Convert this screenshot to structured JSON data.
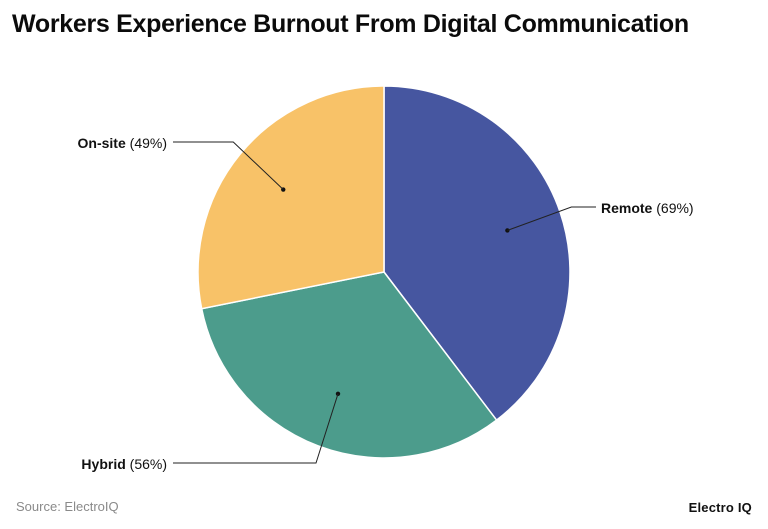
{
  "chart_data": {
    "type": "pie",
    "title": "Workers Experience Burnout From Digital Communication",
    "slices": [
      {
        "label": "Remote",
        "value_text": "(69%)",
        "value": 69,
        "color": "#4656a0"
      },
      {
        "label": "Hybrid",
        "value_text": "(56%)",
        "value": 56,
        "color": "#4c9c8c"
      },
      {
        "label": "On-site",
        "value_text": "(49%)",
        "value": 49,
        "color": "#f8c268"
      }
    ]
  },
  "footer": {
    "source": "Source: ElectroIQ",
    "brand": "Electro IQ"
  }
}
